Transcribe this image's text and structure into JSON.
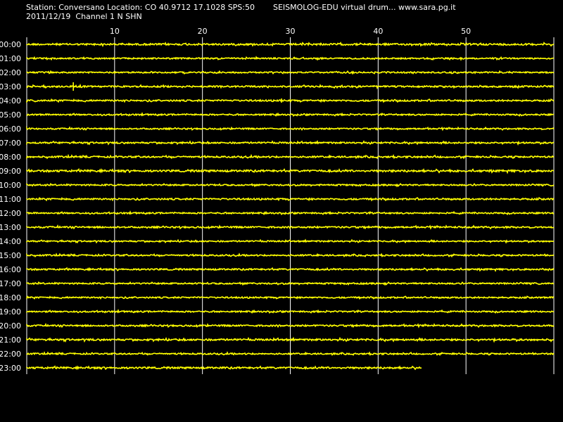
{
  "header": {
    "station_line": "Station: Conversano Location: CO 40.9712 17.1028 SPS:50",
    "channel_line": "2011/12/19  Channel 1 N SHN",
    "credit_line": "SEISMOLOG-EDU virtual drum... www.sara.pg.it"
  },
  "colors": {
    "background": "#000000",
    "trace": "#ffff00",
    "grid": "#ffffff",
    "text": "#ffffff"
  },
  "chart_data": {
    "type": "line",
    "title": "",
    "xlabel": "",
    "ylabel": "",
    "xlim": [
      0,
      60
    ],
    "x_ticks": [
      10,
      20,
      30,
      40,
      50
    ],
    "grid": true,
    "legend": "none",
    "rows": [
      "00:00",
      "01:00",
      "02:00",
      "03:00",
      "04:00",
      "05:00",
      "06:00",
      "07:00",
      "08:00",
      "09:00",
      "10:00",
      "11:00",
      "12:00",
      "13:00",
      "14:00",
      "15:00",
      "16:00",
      "17:00",
      "18:00",
      "19:00",
      "20:00",
      "21:00",
      "22:00",
      "23:00"
    ],
    "row_end_minute": [
      60,
      60,
      60,
      60,
      60,
      60,
      60,
      60,
      60,
      60,
      60,
      60,
      60,
      60,
      60,
      60,
      60,
      60,
      60,
      60,
      60,
      60,
      60,
      45
    ],
    "row_amplitude": [
      1.0,
      0.8,
      0.8,
      0.9,
      0.9,
      0.8,
      0.8,
      0.9,
      0.9,
      1.1,
      0.8,
      0.9,
      0.8,
      0.9,
      0.8,
      0.8,
      0.9,
      0.8,
      0.8,
      0.8,
      0.9,
      1.0,
      0.8,
      1.0
    ],
    "events": [
      {
        "row": "03:00",
        "minute": 5.3,
        "amplitude": 6
      },
      {
        "row": "04:00",
        "minute": 29.0,
        "amplitude": 3
      }
    ]
  }
}
